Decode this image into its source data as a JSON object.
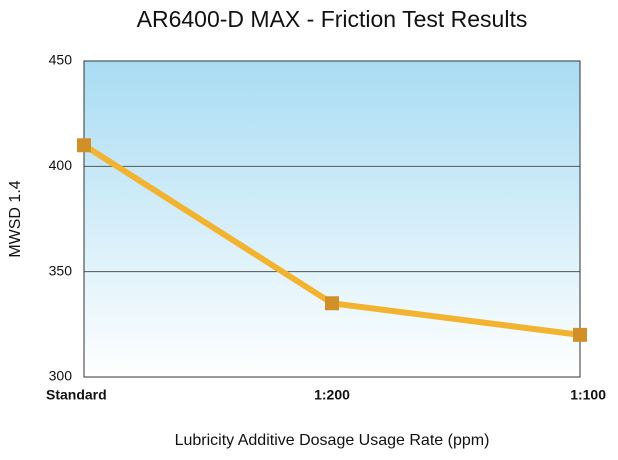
{
  "chart_data": {
    "type": "line",
    "title": "AR6400-D MAX - Friction Test Results",
    "x_label": "Lubricity Additive Dosage Usage Rate (ppm)",
    "y_label": "MWSD 1.4",
    "categories": [
      "Standard",
      "1:200",
      "1:100"
    ],
    "series": [
      {
        "name": "MWSD 1.4",
        "color": "#f2b430",
        "marker_color": "#d18f2a",
        "values": [
          410,
          335,
          320
        ]
      }
    ],
    "ylim": [
      300,
      450
    ],
    "yticks": [
      300,
      350,
      400,
      450
    ],
    "grid": true
  }
}
